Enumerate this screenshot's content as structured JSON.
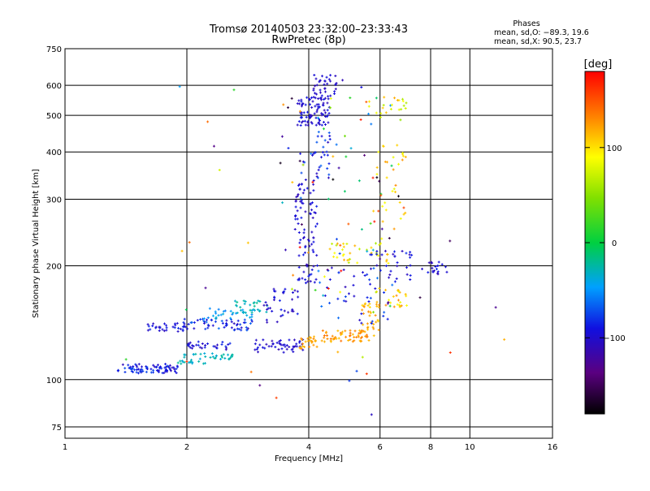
{
  "chart_data": {
    "type": "scatter",
    "title": "Tromsø 20140503 23:32:00–23:33:43",
    "subtitle": "RwPretec (8p)",
    "xlabel": "Frequency [MHz]",
    "ylabel": "Stationary phase Virtual Height [km]",
    "xscale": "log",
    "yscale": "log",
    "xlim": [
      1,
      16
    ],
    "ylim": [
      70,
      750
    ],
    "xticks": [
      1,
      2,
      4,
      6,
      8,
      10,
      16
    ],
    "xtick_labels": [
      "1",
      "2",
      "4",
      "6",
      "8",
      "10",
      "16"
    ],
    "yticks": [
      75,
      100,
      200,
      300,
      400,
      500,
      600,
      750
    ],
    "ytick_labels": [
      "75",
      "100",
      "200",
      "300",
      "400",
      "500",
      "600",
      "750"
    ],
    "grid": true,
    "stats": {
      "heading": "Phases",
      "line1": "mean, sd,O: −89.3, 19.6",
      "line2": "mean, sd,X: 90.5, 23.7"
    },
    "colorbar": {
      "label": "[deg]",
      "range": [
        -180,
        180
      ],
      "ticks": [
        100,
        0,
        -100
      ],
      "tick_labels": [
        "100",
        "0",
        "−100"
      ]
    },
    "clusters": [
      {
        "x": [
          1.35,
          1.9
        ],
        "y": [
          104,
          110
        ],
        "n": 80,
        "phase": [
          -110,
          -70
        ]
      },
      {
        "x": [
          1.9,
          2.6
        ],
        "y": [
          110,
          118
        ],
        "n": 45,
        "phase": [
          -40,
          -20
        ]
      },
      {
        "x": [
          1.6,
          2.0
        ],
        "y": [
          134,
          142
        ],
        "n": 30,
        "phase": [
          -110,
          -80
        ]
      },
      {
        "x": [
          1.95,
          2.9
        ],
        "y": [
          135,
          145
        ],
        "n": 60,
        "phase": [
          -110,
          -60
        ]
      },
      {
        "x": [
          2.2,
          3.0
        ],
        "y": [
          145,
          155
        ],
        "n": 30,
        "phase": [
          -60,
          -30
        ]
      },
      {
        "x": [
          2.6,
          3.2
        ],
        "y": [
          150,
          163
        ],
        "n": 25,
        "phase": [
          -35,
          -15
        ]
      },
      {
        "x": [
          2.0,
          2.6
        ],
        "y": [
          120,
          126
        ],
        "n": 30,
        "phase": [
          -110,
          -80
        ]
      },
      {
        "x": [
          2.9,
          3.9
        ],
        "y": [
          118,
          128
        ],
        "n": 50,
        "phase": [
          -110,
          -90
        ]
      },
      {
        "x": [
          3.1,
          3.8
        ],
        "y": [
          140,
          175
        ],
        "n": 35,
        "phase": [
          -110,
          -85
        ]
      },
      {
        "x": [
          3.7,
          4.2
        ],
        "y": [
          180,
          340
        ],
        "n": 90,
        "phase": [
          -110,
          -85
        ]
      },
      {
        "x": [
          3.75,
          4.5
        ],
        "y": [
          470,
          560
        ],
        "n": 90,
        "phase": [
          -110,
          -85
        ]
      },
      {
        "x": [
          4.1,
          4.7
        ],
        "y": [
          560,
          640
        ],
        "n": 35,
        "phase": [
          -110,
          -90
        ]
      },
      {
        "x": [
          3.8,
          4.6
        ],
        "y": [
          340,
          460
        ],
        "n": 35,
        "phase": [
          -110,
          -60
        ]
      },
      {
        "x": [
          3.8,
          4.2
        ],
        "y": [
          120,
          130
        ],
        "n": 25,
        "phase": [
          110,
          130
        ]
      },
      {
        "x": [
          4.3,
          5.8
        ],
        "y": [
          126,
          135
        ],
        "n": 60,
        "phase": [
          110,
          140
        ]
      },
      {
        "x": [
          5.4,
          6.0
        ],
        "y": [
          135,
          160
        ],
        "n": 30,
        "phase": [
          100,
          130
        ]
      },
      {
        "x": [
          5.8,
          7.0
        ],
        "y": [
          155,
          175
        ],
        "n": 25,
        "phase": [
          80,
          130
        ]
      },
      {
        "x": [
          4.5,
          6.3
        ],
        "y": [
          200,
          230
        ],
        "n": 35,
        "phase": [
          60,
          120
        ]
      },
      {
        "x": [
          5.8,
          7.0
        ],
        "y": [
          250,
          420
        ],
        "n": 30,
        "phase": [
          80,
          130
        ]
      },
      {
        "x": [
          5.5,
          7.0
        ],
        "y": [
          480,
          560
        ],
        "n": 20,
        "phase": [
          60,
          120
        ]
      },
      {
        "x": [
          4.2,
          6.5
        ],
        "y": [
          140,
          200
        ],
        "n": 40,
        "phase": [
          -110,
          -60
        ]
      },
      {
        "x": [
          5.5,
          7.2
        ],
        "y": [
          180,
          220
        ],
        "n": 30,
        "phase": [
          -110,
          -80
        ]
      },
      {
        "x": [
          7.6,
          8.8
        ],
        "y": [
          190,
          205
        ],
        "n": 20,
        "phase": [
          -110,
          -80
        ]
      },
      {
        "x": [
          3.4,
          7.0
        ],
        "y": [
          150,
          600
        ],
        "n": 80,
        "phase": [
          -180,
          180
        ]
      },
      {
        "x": [
          1.3,
          15
        ],
        "y": [
          80,
          650
        ],
        "n": 35,
        "phase": [
          -180,
          180
        ]
      }
    ]
  }
}
